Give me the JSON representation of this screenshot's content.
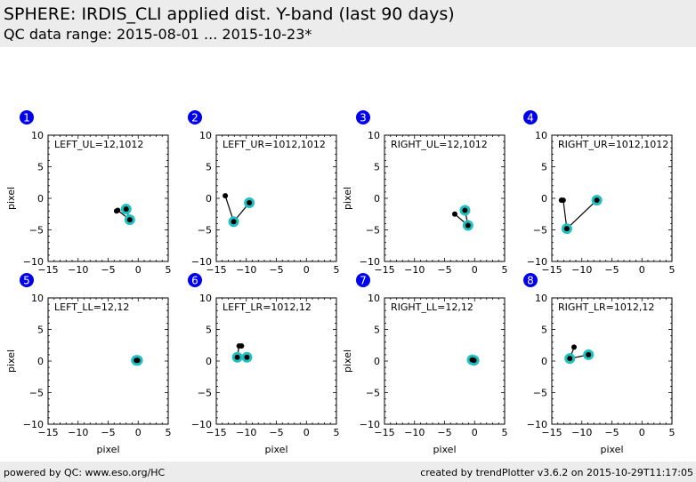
{
  "header": {
    "title": "SPHERE: IRDIS_CLI applied dist. Y-band (last 90 days)",
    "subtitle": "QC data range: 2015-08-01 ... 2015-10-23*"
  },
  "footer": {
    "left": "powered by QC: www.eso.org/HC",
    "right": "created by trendPlotter v3.6.2 on 2015-10-29T11:17:05"
  },
  "colors": {
    "badge": "#0000ee",
    "marker_highlight": "#20c0c0",
    "marker": "#000000",
    "line": "#000000"
  },
  "chart_data": [
    {
      "type": "line",
      "panel": "1",
      "label": "LEFT_UL=12,1012",
      "xlabel": "",
      "ylabel": "pixel",
      "xlim": [
        -15,
        5
      ],
      "ylim": [
        -10,
        10
      ],
      "xticks": [
        "−15",
        "−10",
        "−5",
        "0",
        "5"
      ],
      "yticks": [
        "10",
        "5",
        "0",
        "−5",
        "−10"
      ],
      "points": [
        {
          "x": -3.6,
          "y": -2.0,
          "highlight": false
        },
        {
          "x": -3.4,
          "y": -1.9,
          "highlight": false
        },
        {
          "x": -1.4,
          "y": -3.4,
          "highlight": true
        },
        {
          "x": -2.0,
          "y": -1.7,
          "highlight": true
        }
      ]
    },
    {
      "type": "line",
      "panel": "2",
      "label": "LEFT_UR=1012,1012",
      "xlabel": "",
      "ylabel": "",
      "xlim": [
        -15,
        5
      ],
      "ylim": [
        -10,
        10
      ],
      "xticks": [
        "−15",
        "−10",
        "−5",
        "0",
        "5"
      ],
      "yticks": [
        "10",
        "5",
        "0",
        "−5",
        "−10"
      ],
      "points": [
        {
          "x": -13.5,
          "y": 0.4,
          "highlight": false
        },
        {
          "x": -12.1,
          "y": -3.7,
          "highlight": true
        },
        {
          "x": -9.5,
          "y": -0.7,
          "highlight": true
        }
      ]
    },
    {
      "type": "line",
      "panel": "3",
      "label": "RIGHT_UL=12,1012",
      "xlabel": "",
      "ylabel": "pixel",
      "xlim": [
        -15,
        5
      ],
      "ylim": [
        -10,
        10
      ],
      "xticks": [
        "−15",
        "−10",
        "−5",
        "0",
        "5"
      ],
      "yticks": [
        "10",
        "5",
        "0",
        "−5",
        "−10"
      ],
      "points": [
        {
          "x": -3.3,
          "y": -2.5,
          "highlight": false
        },
        {
          "x": -1.1,
          "y": -4.3,
          "highlight": true
        },
        {
          "x": -1.6,
          "y": -1.9,
          "highlight": true
        }
      ]
    },
    {
      "type": "line",
      "panel": "4",
      "label": "RIGHT_UR=1012,1012",
      "xlabel": "",
      "ylabel": "",
      "xlim": [
        -15,
        5
      ],
      "ylim": [
        -10,
        10
      ],
      "xticks": [
        "−15",
        "−10",
        "−5",
        "0",
        "5"
      ],
      "yticks": [
        "10",
        "5",
        "0",
        "−5",
        "−10"
      ],
      "points": [
        {
          "x": -13.4,
          "y": -0.3,
          "highlight": false
        },
        {
          "x": -13.1,
          "y": -0.3,
          "highlight": false
        },
        {
          "x": -12.5,
          "y": -4.8,
          "highlight": true
        },
        {
          "x": -7.5,
          "y": -0.3,
          "highlight": true
        }
      ]
    },
    {
      "type": "line",
      "panel": "5",
      "label": "LEFT_LL=12,12",
      "xlabel": "pixel",
      "ylabel": "pixel",
      "xlim": [
        -15,
        5
      ],
      "ylim": [
        -10,
        10
      ],
      "xticks": [
        "−15",
        "−10",
        "−5",
        "0",
        "5"
      ],
      "yticks": [
        "10",
        "5",
        "0",
        "−5",
        "−10"
      ],
      "points": [
        {
          "x": -0.3,
          "y": 0.1,
          "highlight": true
        },
        {
          "x": -0.1,
          "y": 0.1,
          "highlight": true
        }
      ]
    },
    {
      "type": "line",
      "panel": "6",
      "label": "LEFT_LR=1012,12",
      "xlabel": "pixel",
      "ylabel": "",
      "xlim": [
        -15,
        5
      ],
      "ylim": [
        -10,
        10
      ],
      "xticks": [
        "−15",
        "−10",
        "−5",
        "0",
        "5"
      ],
      "yticks": [
        "10",
        "5",
        "0",
        "−5",
        "−10"
      ],
      "points": [
        {
          "x": -10.8,
          "y": 2.4,
          "highlight": false
        },
        {
          "x": -11.2,
          "y": 2.4,
          "highlight": false
        },
        {
          "x": -11.5,
          "y": 0.6,
          "highlight": true
        },
        {
          "x": -9.9,
          "y": 0.6,
          "highlight": true
        }
      ]
    },
    {
      "type": "line",
      "panel": "7",
      "label": "RIGHT_LL=12,12",
      "xlabel": "pixel",
      "ylabel": "pixel",
      "xlim": [
        -15,
        5
      ],
      "ylim": [
        -10,
        10
      ],
      "xticks": [
        "−15",
        "−10",
        "−5",
        "0",
        "5"
      ],
      "yticks": [
        "10",
        "5",
        "0",
        "−5",
        "−10"
      ],
      "points": [
        {
          "x": -0.4,
          "y": 0.2,
          "highlight": true
        },
        {
          "x": -0.1,
          "y": 0.1,
          "highlight": true
        }
      ]
    },
    {
      "type": "line",
      "panel": "8",
      "label": "RIGHT_LR=1012,12",
      "xlabel": "pixel",
      "ylabel": "",
      "xlim": [
        -15,
        5
      ],
      "ylim": [
        -10,
        10
      ],
      "xticks": [
        "−15",
        "−10",
        "−5",
        "0",
        "5"
      ],
      "yticks": [
        "10",
        "5",
        "0",
        "−5",
        "−10"
      ],
      "points": [
        {
          "x": -11.3,
          "y": 2.2,
          "highlight": false
        },
        {
          "x": -12.0,
          "y": 0.4,
          "highlight": true
        },
        {
          "x": -8.9,
          "y": 1.0,
          "highlight": true
        }
      ]
    }
  ]
}
